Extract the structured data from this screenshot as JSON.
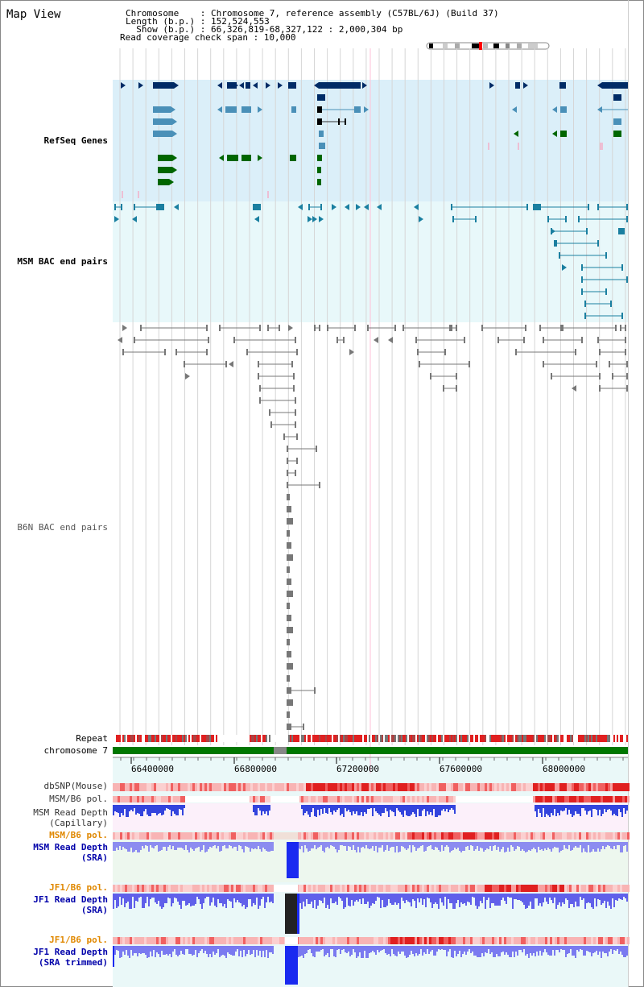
{
  "header": {
    "title": "Map View",
    "chromosome_line": "Chromosome    : Chromosome 7, reference assembly (C57BL/6J) (Build 37)",
    "length_line": "Length (b.p.) : 152,524,553",
    "show_line": "  Show (b.p.) : 66,326,819-68,327,122 : 2,000,304 bp",
    "coverage_line": "Read coverage check span : 10,000"
  },
  "tracks": {
    "refseq": "RefSeq Genes",
    "msm_bac": "MSM BAC end pairs",
    "b6n_bac": "B6N BAC end pairs",
    "repeat": "Repeat",
    "chromosome": "chromosome 7",
    "dbsnp": "dbSNP(Mouse)",
    "msm_b6_pol_1": "MSM/B6 pol.",
    "msm_depth_cap_1": "MSM Read Depth",
    "msm_depth_cap_2": "(Capillary)",
    "msm_b6_pol_2": "MSM/B6 pol.",
    "msm_depth_sra_1": "MSM Read Depth",
    "msm_depth_sra_2": "(SRA)",
    "jf1_b6_pol_1": "JF1/B6 pol.",
    "jf1_depth_sra_1": "JF1 Read Depth",
    "jf1_depth_sra_2": "(SRA)",
    "jf1_b6_pol_2": "JF1/B6 pol.",
    "jf1_depth_trim_1": "JF1 Read Depth",
    "jf1_depth_trim_2": "(SRA trimmed)"
  },
  "axis": {
    "ticks": [
      "66400000",
      "66800000",
      "67200000",
      "67600000",
      "68000000"
    ]
  },
  "colors": {
    "refseq_bg": "#dbeff9",
    "msm_bg": "#e8f8fa",
    "refseq_label": "#0000aa",
    "msm_label": "#006688",
    "b6n_label": "#555555",
    "pol_orange": "#e08800",
    "depth_blue": "#0000aa",
    "chromosome_green": "#007700"
  }
}
